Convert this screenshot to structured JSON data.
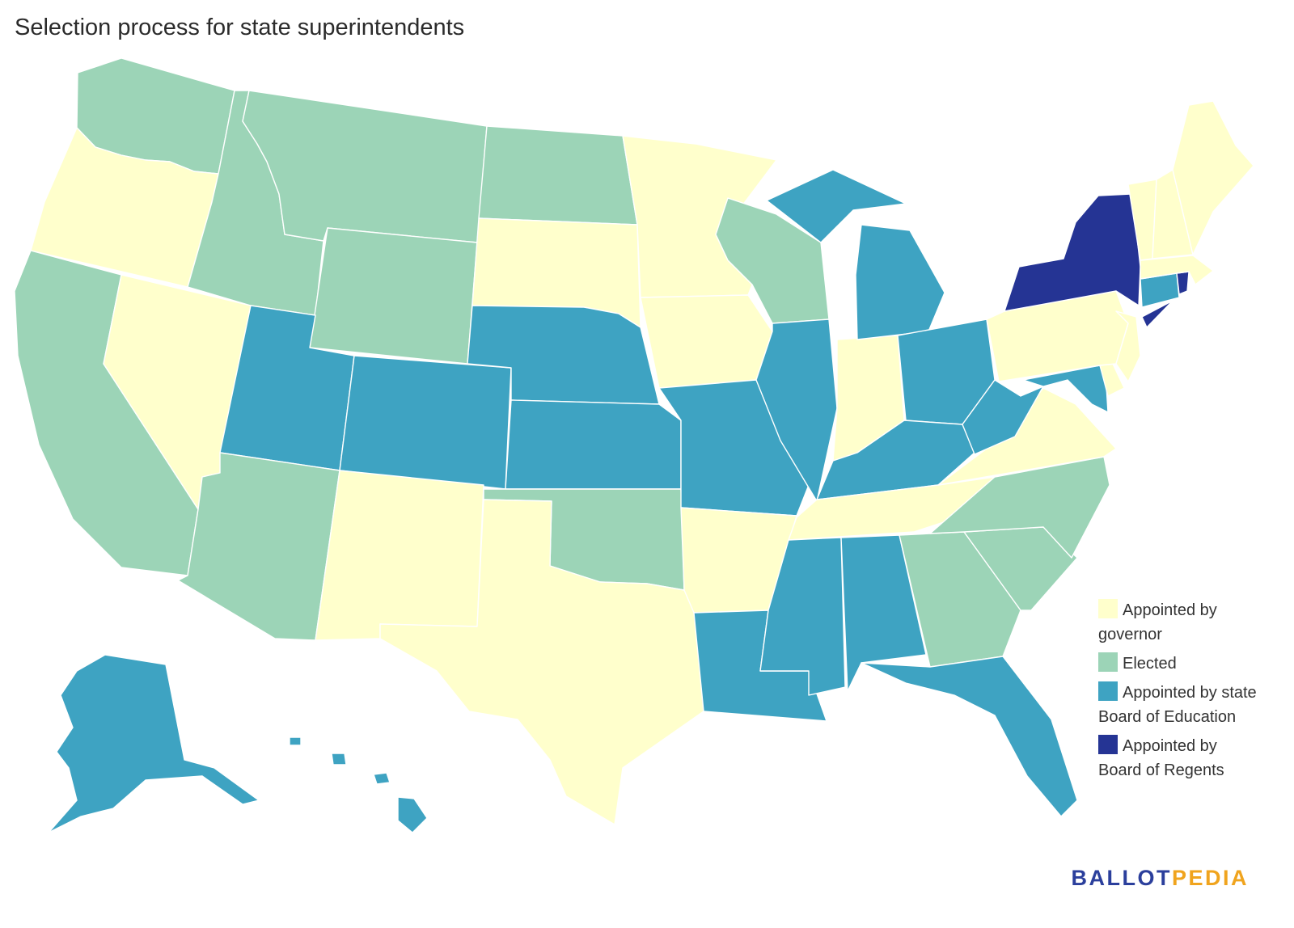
{
  "title": "Selection process for state superintendents",
  "colors": {
    "governor": "#ffffcc",
    "elected": "#9cd4b7",
    "board_education": "#3ea3c2",
    "regents": "#253494"
  },
  "legend": [
    {
      "key": "governor",
      "label": "Appointed by governor"
    },
    {
      "key": "elected",
      "label": "Elected"
    },
    {
      "key": "board_education",
      "label": "Appointed by state Board of Education"
    },
    {
      "key": "regents",
      "label": "Appointed by Board of Regents"
    }
  ],
  "states": {
    "WA": "elected",
    "OR": "governor",
    "CA": "elected",
    "NV": "governor",
    "ID": "elected",
    "MT": "elected",
    "WY": "elected",
    "UT": "board_education",
    "AZ": "elected",
    "CO": "board_education",
    "NM": "governor",
    "ND": "elected",
    "SD": "governor",
    "NE": "board_education",
    "KS": "board_education",
    "OK": "elected",
    "TX": "governor",
    "MN": "governor",
    "IA": "governor",
    "MO": "board_education",
    "AR": "governor",
    "LA": "board_education",
    "WI": "elected",
    "IL": "board_education",
    "MI": "board_education",
    "IN": "governor",
    "OH": "board_education",
    "KY": "board_education",
    "TN": "governor",
    "MS": "board_education",
    "AL": "board_education",
    "GA": "elected",
    "FL": "board_education",
    "SC": "elected",
    "NC": "elected",
    "VA": "governor",
    "WV": "board_education",
    "MD": "board_education",
    "DE": "governor",
    "NJ": "governor",
    "PA": "governor",
    "NY": "regents",
    "CT": "board_education",
    "RI": "regents",
    "MA": "governor",
    "VT": "governor",
    "NH": "governor",
    "ME": "governor",
    "AK": "board_education",
    "HI": "board_education"
  },
  "brand": {
    "part1": "BALLOT",
    "part2": "PEDIA"
  }
}
